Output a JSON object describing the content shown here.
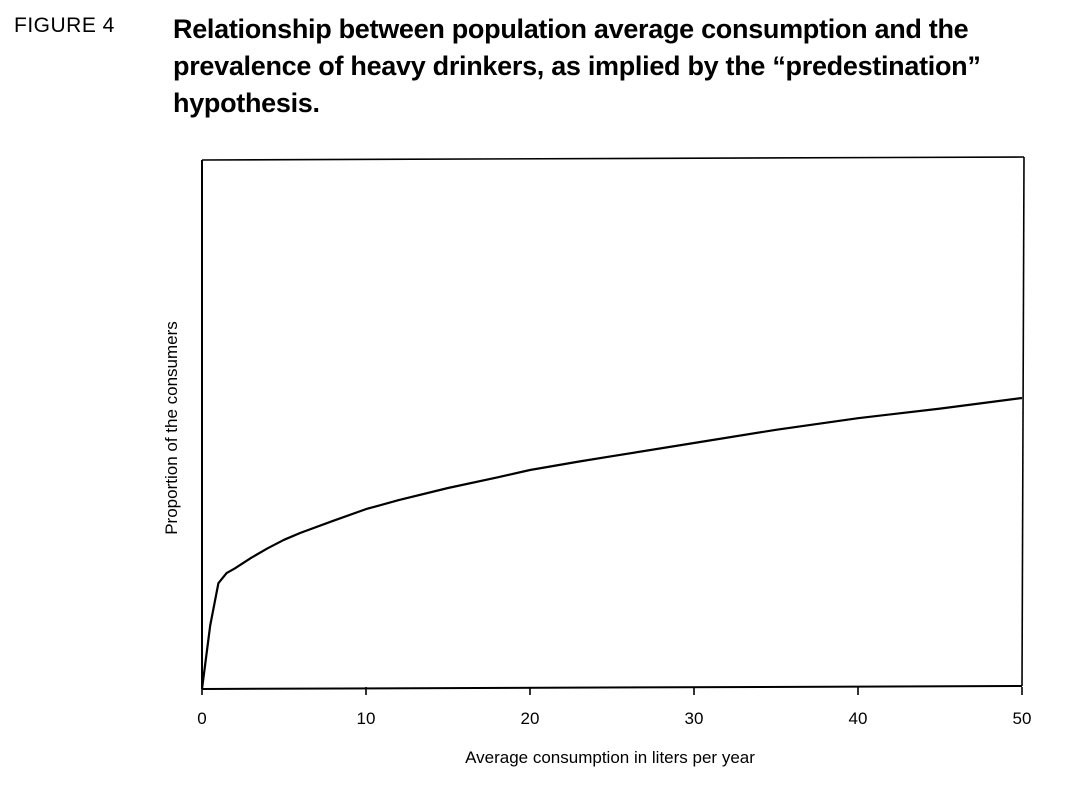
{
  "figure": {
    "label": "FIGURE 4",
    "title": "Relationship between population average consumption and the prevalence of heavy drinkers, as implied by the “predestination” hypothesis."
  },
  "chart_data": {
    "type": "line",
    "title": "Relationship between population average consumption and the prevalence of heavy drinkers, as implied by the “predestination” hypothesis.",
    "xlabel": "Average consumption in liters per year",
    "ylabel": "Proportion of the consumers",
    "xlim": [
      0,
      50
    ],
    "ylim": [
      0,
      1
    ],
    "x_ticks": [
      0,
      10,
      20,
      30,
      40,
      50
    ],
    "y_ticks": [],
    "grid": false,
    "legend": "none",
    "series": [
      {
        "color": "#000000",
        "x": [
          0,
          0.5,
          1,
          1.5,
          2,
          3,
          4,
          5,
          6,
          8,
          10,
          12,
          15,
          18,
          20,
          23,
          25,
          30,
          35,
          40,
          45,
          50
        ],
        "y": [
          0,
          0.12,
          0.2,
          0.219,
          0.228,
          0.248,
          0.266,
          0.282,
          0.295,
          0.318,
          0.34,
          0.357,
          0.38,
          0.4,
          0.414,
          0.43,
          0.44,
          0.465,
          0.49,
          0.512,
          0.53,
          0.55
        ]
      }
    ]
  }
}
